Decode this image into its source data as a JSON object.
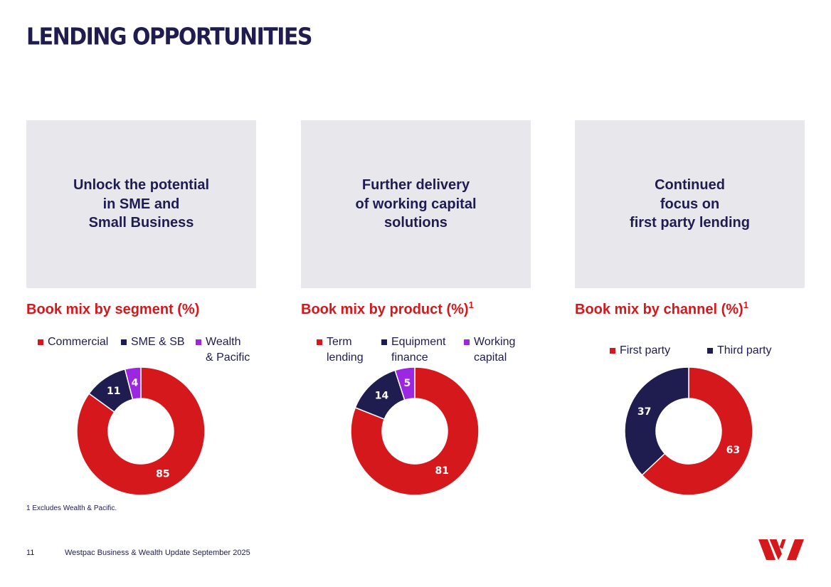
{
  "page": {
    "title": "LENDING OPPORTUNITIES",
    "footnote": "1 Excludes Wealth & Pacific.",
    "page_number": "11",
    "footer": "Westpac Business & Wealth Update September 2025"
  },
  "colors": {
    "red": "#d5181c",
    "navy": "#1f1c4f",
    "purple": "#9b27e0",
    "panel_bg": "#e8e8ec"
  },
  "panels": [
    {
      "lines": [
        "Unlock the potential",
        "in SME and",
        "Small Business"
      ]
    },
    {
      "lines": [
        "Further delivery",
        "of working capital",
        "solutions"
      ]
    },
    {
      "lines": [
        "Continued",
        "focus on",
        "first party lending"
      ]
    }
  ],
  "chart_data": [
    {
      "type": "pie",
      "title": "Book mix by segment (%)",
      "title_superscript": "",
      "categories": [
        "Commercial",
        "SME & SB",
        "Wealth & Pacific"
      ],
      "legend_lines": [
        [
          "Commercial"
        ],
        [
          "SME & SB"
        ],
        [
          "Wealth",
          "& Pacific"
        ]
      ],
      "values": [
        85,
        11,
        4
      ],
      "colors": [
        "#d5181c",
        "#1f1c4f",
        "#9b27e0"
      ],
      "legend": "top"
    },
    {
      "type": "pie",
      "title": "Book mix by product (%)",
      "title_superscript": "1",
      "categories": [
        "Term lending",
        "Equipment finance",
        "Working capital"
      ],
      "legend_lines": [
        [
          "Term",
          "lending"
        ],
        [
          "Equipment",
          "finance"
        ],
        [
          "Working",
          "capital"
        ]
      ],
      "values": [
        81,
        14,
        5
      ],
      "colors": [
        "#d5181c",
        "#1f1c4f",
        "#9b27e0"
      ],
      "legend": "top"
    },
    {
      "type": "pie",
      "title": "Book mix by channel (%)",
      "title_superscript": "1",
      "categories": [
        "First party",
        "Third party"
      ],
      "legend_lines": [
        [
          "First party"
        ],
        [
          "Third party"
        ]
      ],
      "values": [
        63,
        37
      ],
      "colors": [
        "#d5181c",
        "#1f1c4f"
      ],
      "legend": "top"
    }
  ]
}
